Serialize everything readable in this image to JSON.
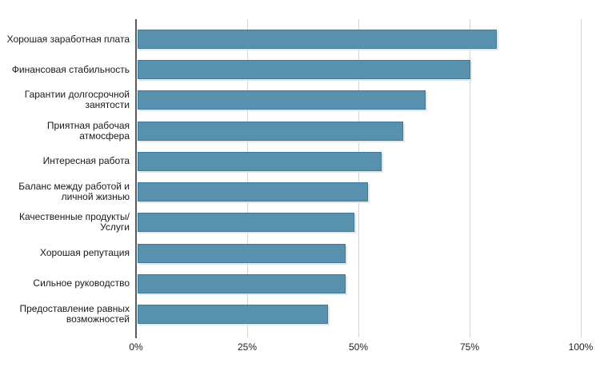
{
  "chart_data": {
    "type": "bar",
    "orientation": "horizontal",
    "title": "",
    "xlabel": "",
    "ylabel": "",
    "categories": [
      "Хорошая заработная плата",
      "Финансовая стабильность",
      "Гарантии долгосрочной занятости",
      "Приятная рабочая атмосфера",
      "Интересная работа",
      "Баланс между работой и личной жизнью",
      "Качественные продукты/Услуги",
      "Хорошая репутация",
      "Сильное руководство",
      "Предоставление равных возможностей"
    ],
    "values": [
      81,
      75,
      65,
      60,
      55,
      52,
      49,
      47,
      47,
      43
    ],
    "x_tick_labels": [
      "0%",
      "25%",
      "50%",
      "75%",
      "100%"
    ],
    "x_tick_positions": [
      0,
      25,
      50,
      75,
      100
    ],
    "xlim": [
      0,
      100
    ],
    "grid": "vertical",
    "legend": "none",
    "colors": {
      "bar_fill": "#5891AE",
      "bar_border": "#43789B",
      "bar_shadow": "#d9e9f2",
      "gridline": "#d4d4d4",
      "axis_line": "#5b5b5b",
      "label_text": "#1a1a1a",
      "background": "#ffffff"
    }
  }
}
